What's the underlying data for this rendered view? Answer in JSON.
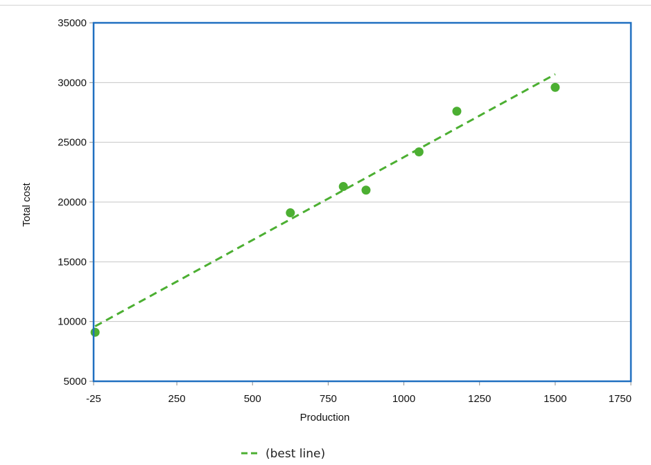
{
  "chart_data": {
    "type": "scatter",
    "title": "",
    "xlabel": "Production",
    "ylabel": "Total cost",
    "xlim": [
      -25,
      1750
    ],
    "ylim": [
      5000,
      35000
    ],
    "x_ticks": [
      -25,
      250,
      500,
      750,
      1000,
      1250,
      1500,
      1750
    ],
    "x_tick_labels": [
      "-25",
      "250",
      "500",
      "750",
      "1000",
      "1250",
      "1500",
      "1750"
    ],
    "y_ticks": [
      5000,
      10000,
      15000,
      20000,
      25000,
      30000,
      35000
    ],
    "y_tick_labels": [
      "5000",
      "10000",
      "15000",
      "20000",
      "25000",
      "30000",
      "35000"
    ],
    "grid": "horizontal",
    "legend_position": "bottom-center",
    "colors": {
      "points": "#4caf32",
      "trend": "#4caf32",
      "frame": "#1f6fc0",
      "grid": "#c4c4c4",
      "axis": "#8a8a8a"
    },
    "series": [
      {
        "values": [
          {
            "x": -20,
            "y": 9100
          },
          {
            "x": 625,
            "y": 19100
          },
          {
            "x": 800,
            "y": 21300
          },
          {
            "x": 875,
            "y": 21000
          },
          {
            "x": 1050,
            "y": 24200
          },
          {
            "x": 1175,
            "y": 27600
          },
          {
            "x": 1500,
            "y": 29600
          }
        ]
      }
    ],
    "trendline": {
      "name": "(best line)",
      "style": "dashed",
      "from": {
        "x": -20,
        "y": 9600
      },
      "to": {
        "x": 1500,
        "y": 30700
      }
    }
  }
}
